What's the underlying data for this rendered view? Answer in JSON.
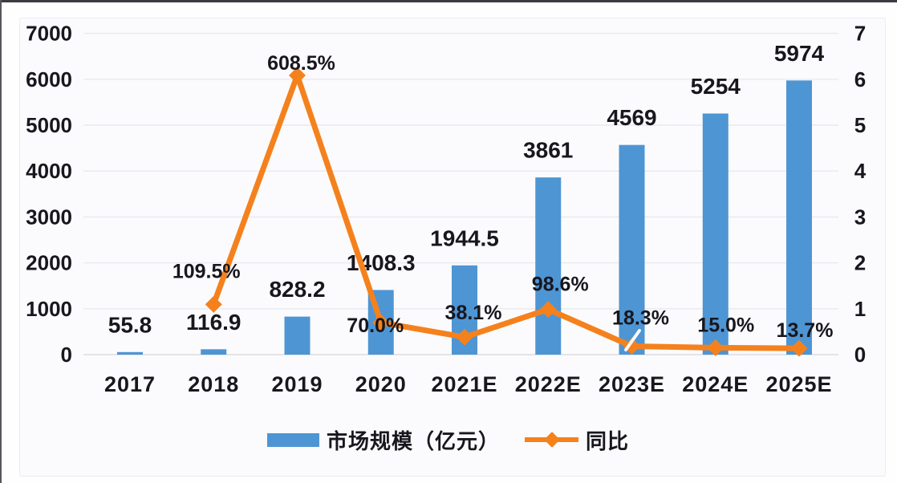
{
  "chart_data": {
    "type": "combo-bar-line",
    "title": "",
    "categories": [
      "2017",
      "2018",
      "2019",
      "2020",
      "2021E",
      "2022E",
      "2023E",
      "2024E",
      "2025E"
    ],
    "series": [
      {
        "name": "市场规模（亿元）",
        "type": "bar",
        "axis": "left",
        "values": [
          55.8,
          116.9,
          828.2,
          1408.3,
          1944.5,
          3861,
          4569,
          5254,
          5974
        ],
        "labels": [
          "55.8",
          "116.9",
          "828.2",
          "1408.3",
          "1944.5",
          "3861",
          "4569",
          "5254",
          "5974"
        ]
      },
      {
        "name": "同比",
        "type": "line",
        "axis": "right",
        "unit": "%",
        "values_pct": [
          null,
          109.5,
          608.5,
          70.0,
          38.1,
          98.6,
          18.3,
          15.0,
          13.7
        ],
        "labels": [
          null,
          "109.5%",
          "608.5%",
          "70.0%",
          "38.1%",
          "98.6%",
          "18.3%",
          "15.0%",
          "13.7%"
        ]
      }
    ],
    "left_axis": {
      "min": 0,
      "max": 7000,
      "step": 1000,
      "ticks": [
        "0",
        "1000",
        "2000",
        "3000",
        "4000",
        "5000",
        "6000",
        "7000"
      ]
    },
    "right_axis": {
      "min": 0,
      "max": 7,
      "step": 1,
      "ticks": [
        "0",
        "1",
        "2",
        "3",
        "4",
        "5",
        "6",
        "7"
      ]
    },
    "legend": [
      {
        "label": "市场规模（亿元）",
        "marker": "bar-swatch"
      },
      {
        "label": "同比",
        "marker": "line-diamond"
      }
    ],
    "legend_position": "bottom",
    "grid": true,
    "colors": {
      "bar": "#4e95d4",
      "line": "#f5811d",
      "text": "#17171d",
      "grid": "#e9e9ef",
      "baseline": "#dcdce2"
    }
  }
}
